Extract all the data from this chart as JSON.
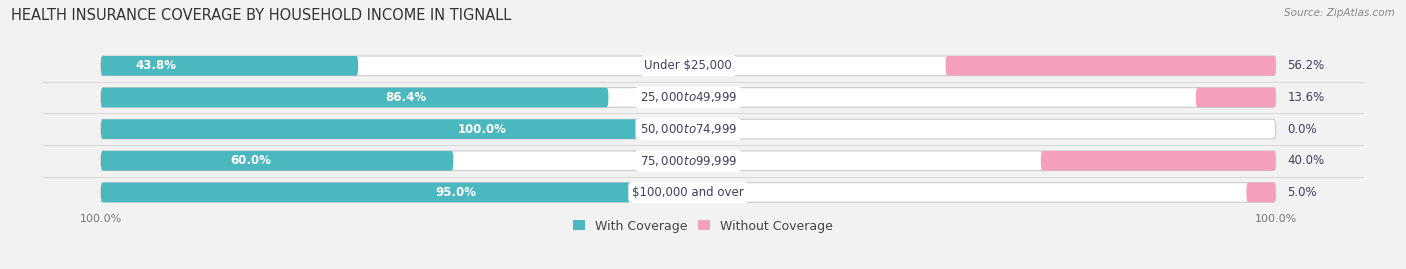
{
  "title": "HEALTH INSURANCE COVERAGE BY HOUSEHOLD INCOME IN TIGNALL",
  "source": "Source: ZipAtlas.com",
  "categories": [
    "Under $25,000",
    "$25,000 to $49,999",
    "$50,000 to $74,999",
    "$75,000 to $99,999",
    "$100,000 and over"
  ],
  "with_coverage": [
    43.8,
    86.4,
    100.0,
    60.0,
    95.0
  ],
  "without_coverage": [
    56.2,
    13.6,
    0.0,
    40.0,
    5.0
  ],
  "color_with": "#4BB8C0",
  "color_without": "#F07098",
  "color_without_light": "#F4A0BC",
  "bg_color": "#f2f2f2",
  "bar_bg": "#e0e0e0",
  "title_fontsize": 10.5,
  "value_fontsize": 8.5,
  "cat_fontsize": 8.5,
  "legend_fontsize": 9,
  "axis_label_fontsize": 8
}
